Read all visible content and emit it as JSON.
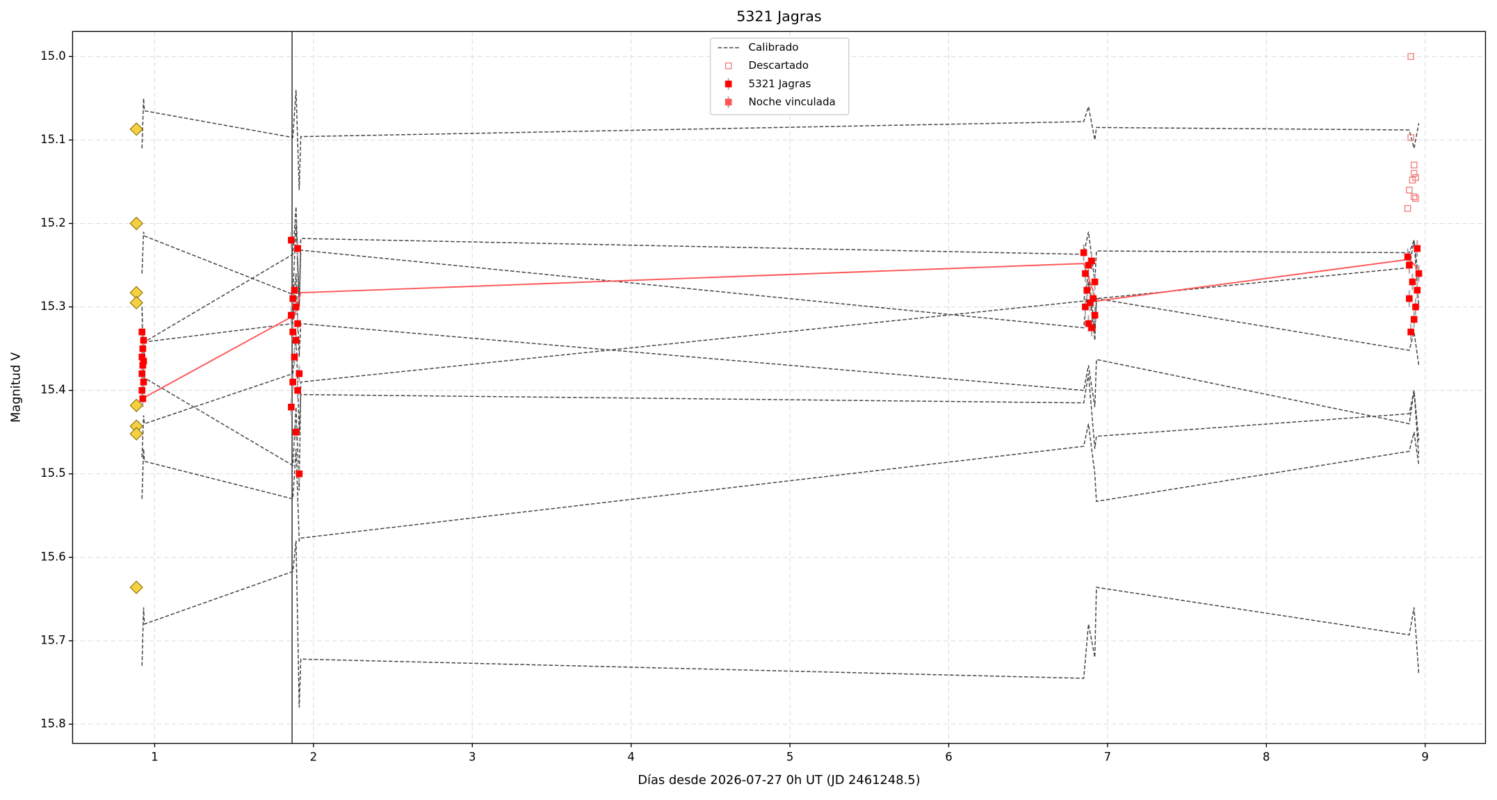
{
  "chart_data": {
    "type": "scatter",
    "title": "5321 Jagras",
    "xlabel": "Días desde 2026-07-27 0h UT (JD 2461248.5)",
    "ylabel": "Magnitud V",
    "xlim": [
      0.483,
      9.38
    ],
    "ylim": [
      15.823,
      14.97
    ],
    "xticks": [
      1,
      2,
      3,
      4,
      5,
      6,
      7,
      8,
      9
    ],
    "yticks": [
      {
        "value": 15.0,
        "label": "15.0"
      },
      15.1,
      15.2,
      15.3,
      15.4,
      15.5,
      15.6,
      15.7,
      15.8
    ],
    "grid": true,
    "legend": "upper center",
    "vline": 1.865,
    "highlight_points": {
      "color": "#f5d142",
      "x": [
        0.885,
        0.885,
        0.885,
        0.885,
        0.885,
        0.885,
        0.885,
        0.885
      ],
      "values": [
        15.087,
        15.2,
        15.283,
        15.295,
        15.418,
        15.443,
        15.452,
        15.636
      ]
    },
    "series": [
      {
        "name": "Calibrado",
        "kind": "dashed",
        "color": "#444444",
        "x": [
          0.92,
          0.93,
          0.935,
          1.87,
          1.89,
          1.91,
          1.92,
          6.85,
          6.88,
          6.92,
          6.93,
          8.9,
          8.93,
          8.96
        ],
        "tracks": [
          [
            15.11,
            15.05,
            15.065,
            15.097,
            15.04,
            15.16,
            15.096,
            15.078,
            15.06,
            15.1,
            15.085,
            15.088,
            15.11,
            15.08
          ],
          [
            15.26,
            15.21,
            15.215,
            15.285,
            15.2,
            15.3,
            15.218,
            15.237,
            15.21,
            15.27,
            15.233,
            15.235,
            15.22,
            15.27
          ],
          [
            15.3,
            15.36,
            15.342,
            15.237,
            15.18,
            15.3,
            15.232,
            15.325,
            15.27,
            15.34,
            15.29,
            15.352,
            15.33,
            15.37
          ],
          [
            15.3,
            15.38,
            15.342,
            15.32,
            15.26,
            15.36,
            15.32,
            15.4,
            15.37,
            15.42,
            15.363,
            15.44,
            15.4,
            15.48
          ],
          [
            15.35,
            15.4,
            15.385,
            15.49,
            15.42,
            15.52,
            15.39,
            15.293,
            15.26,
            15.33,
            15.29,
            15.253,
            15.22,
            15.3
          ],
          [
            15.48,
            15.43,
            15.44,
            15.38,
            15.33,
            15.45,
            15.405,
            15.415,
            15.38,
            15.47,
            15.455,
            15.428,
            15.4,
            15.46
          ],
          [
            15.53,
            15.47,
            15.485,
            15.53,
            15.47,
            15.58,
            15.577,
            15.467,
            15.44,
            15.5,
            15.533,
            15.473,
            15.45,
            15.49
          ],
          [
            15.73,
            15.66,
            15.68,
            15.617,
            15.58,
            15.78,
            15.722,
            15.745,
            15.68,
            15.72,
            15.636,
            15.693,
            15.66,
            15.74
          ]
        ]
      },
      {
        "name": "Descartado",
        "kind": "open-square",
        "color": "#f08080",
        "x": [
          8.91,
          8.91,
          8.93,
          8.93,
          8.92,
          8.94,
          8.9,
          8.93,
          8.94,
          8.89
        ],
        "values": [
          15.0,
          15.097,
          15.13,
          15.14,
          15.148,
          15.145,
          15.16,
          15.168,
          15.17,
          15.182
        ]
      },
      {
        "name": "5321 Jagras",
        "kind": "errorbar",
        "color": "#ff0000",
        "x": [
          0.92,
          0.93,
          0.925,
          0.92,
          0.93,
          0.925,
          0.92,
          0.93,
          0.92,
          0.925,
          1.86,
          1.9,
          1.88,
          1.87,
          1.89,
          1.86,
          1.9,
          1.87,
          1.89,
          1.88,
          1.91,
          1.87,
          1.9,
          1.86,
          1.89,
          1.91,
          6.85,
          6.9,
          6.88,
          6.86,
          6.92,
          6.87,
          6.91,
          6.89,
          6.86,
          6.92,
          6.88,
          6.9,
          8.89,
          8.95,
          8.9,
          8.96,
          8.92,
          8.95,
          8.9,
          8.94,
          8.93,
          8.91
        ],
        "values": [
          15.33,
          15.34,
          15.35,
          15.36,
          15.365,
          15.37,
          15.38,
          15.39,
          15.4,
          15.41,
          15.22,
          15.23,
          15.28,
          15.29,
          15.3,
          15.31,
          15.32,
          15.33,
          15.34,
          15.36,
          15.38,
          15.39,
          15.4,
          15.42,
          15.45,
          15.5,
          15.235,
          15.245,
          15.25,
          15.26,
          15.27,
          15.28,
          15.29,
          15.295,
          15.3,
          15.31,
          15.32,
          15.325,
          15.24,
          15.23,
          15.25,
          15.26,
          15.27,
          15.28,
          15.29,
          15.3,
          15.315,
          15.33
        ],
        "errors": [
          0.01,
          0.01,
          0.01,
          0.01,
          0.01,
          0.01,
          0.01,
          0.01,
          0.01,
          0.01,
          0.01,
          0.01,
          0.01,
          0.01,
          0.01,
          0.01,
          0.01,
          0.01,
          0.01,
          0.01,
          0.01,
          0.01,
          0.01,
          0.01,
          0.01,
          0.01,
          0.01,
          0.01,
          0.01,
          0.01,
          0.01,
          0.01,
          0.01,
          0.01,
          0.01,
          0.01,
          0.01,
          0.01,
          0.01,
          0.01,
          0.01,
          0.01,
          0.01,
          0.01,
          0.01,
          0.01,
          0.01,
          0.01
        ]
      },
      {
        "name": "Noche vinculada",
        "kind": "line",
        "color": "#ff5555",
        "x": [
          0.92,
          1.88,
          1.92,
          6.85,
          6.93,
          8.9,
          8.96
        ],
        "values": [
          15.41,
          15.31,
          15.283,
          15.248,
          15.293,
          15.243,
          15.255
        ]
      }
    ]
  }
}
